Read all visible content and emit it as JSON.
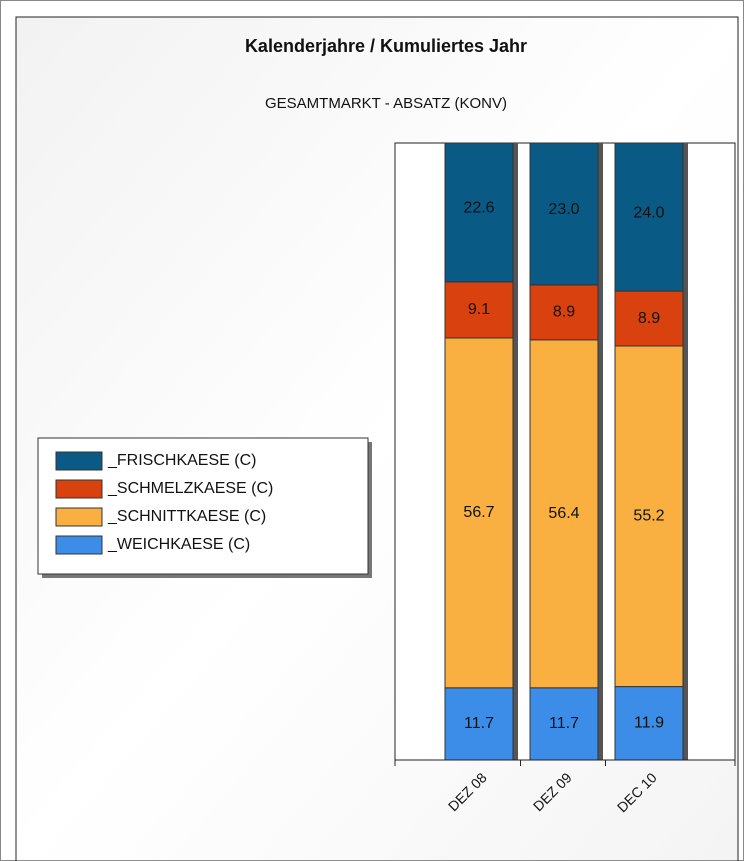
{
  "chart_data": {
    "type": "stacked_bar",
    "title": "Kalenderjahre / Kumuliertes Jahr",
    "subtitle": "GESAMTMARKT - ABSATZ (KONV)",
    "categories": [
      "DEZ 08",
      "DEZ 09",
      "DEC 10"
    ],
    "ylim": [
      0,
      100
    ],
    "series": [
      {
        "name": "_WEICHKAESE (C)",
        "color": "#3b8de8",
        "values": [
          11.7,
          11.7,
          11.9
        ],
        "value_labels": [
          "11.7",
          "11.7",
          "11.9"
        ]
      },
      {
        "name": "_SCHNITTKAESE (C)",
        "color": "#f9b040",
        "values": [
          56.7,
          56.4,
          55.2
        ],
        "value_labels": [
          "56.7",
          "56.4",
          "55.2"
        ]
      },
      {
        "name": "_SCHMELZKAESE (C)",
        "color": "#d9420e",
        "values": [
          9.1,
          8.9,
          8.9
        ],
        "value_labels": [
          "9.1",
          "8.9",
          "8.9"
        ]
      },
      {
        "name": "_FRISCHKAESE (C)",
        "color": "#0a5a86",
        "values": [
          22.6,
          23.0,
          24.0
        ],
        "value_labels": [
          "22.6",
          "23.0",
          "24.0"
        ]
      }
    ]
  }
}
